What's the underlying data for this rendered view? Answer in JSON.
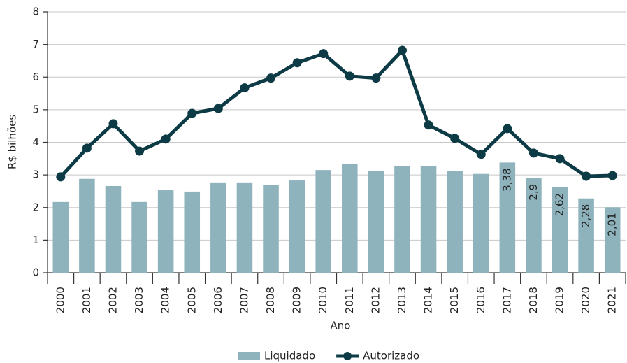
{
  "chart_data": {
    "type": "bar_line",
    "ylabel": "R$ bilhões",
    "xlabel": "Ano",
    "categories": [
      "2000",
      "2001",
      "2002",
      "2003",
      "2004",
      "2005",
      "2006",
      "2007",
      "2008",
      "2009",
      "2010",
      "2011",
      "2012",
      "2013",
      "2014",
      "2015",
      "2016",
      "2017",
      "2018",
      "2019",
      "2020",
      "2021"
    ],
    "series": [
      {
        "name": "Liquidado",
        "type": "bar",
        "color": "#8fb3bd",
        "values": [
          2.17,
          2.88,
          2.66,
          2.17,
          2.53,
          2.49,
          2.77,
          2.77,
          2.7,
          2.83,
          3.15,
          3.33,
          3.13,
          3.28,
          3.28,
          3.13,
          3.03,
          3.38,
          2.9,
          2.62,
          2.28,
          2.01
        ],
        "value_labels": [
          null,
          null,
          null,
          null,
          null,
          null,
          null,
          null,
          null,
          null,
          null,
          null,
          null,
          null,
          null,
          null,
          null,
          "3,38",
          "2,9",
          "2,62",
          "2,28",
          "2,01"
        ]
      },
      {
        "name": "Autorizado",
        "type": "line",
        "color": "#0d3b45",
        "values": [
          2.94,
          3.82,
          4.57,
          3.73,
          4.1,
          4.89,
          5.04,
          5.67,
          5.97,
          6.44,
          6.72,
          6.03,
          5.97,
          6.82,
          4.53,
          4.12,
          3.63,
          4.42,
          3.67,
          3.5,
          2.96,
          2.98
        ]
      }
    ],
    "ylim": [
      0,
      8
    ],
    "yticks": [
      0,
      1,
      2,
      3,
      4,
      5,
      6,
      7,
      8
    ],
    "grid": true,
    "legend": "bottom"
  }
}
